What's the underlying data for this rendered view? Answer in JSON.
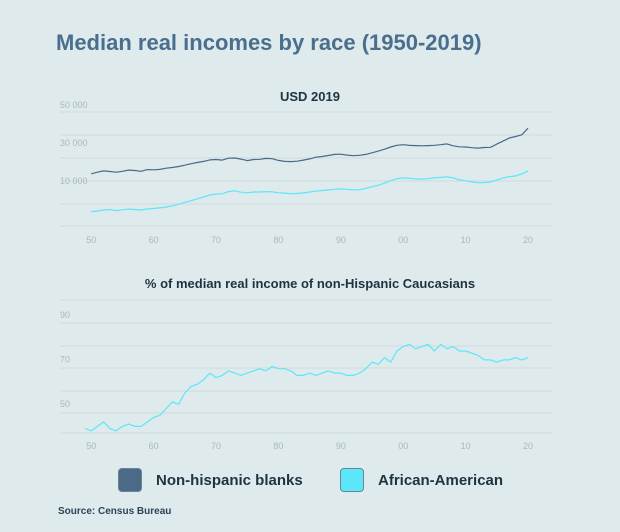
{
  "title": "Median real incomes by race (1950-2019)",
  "colors": {
    "non_hispanic": "#4b6a87",
    "african_american": "#5ae8f8",
    "grid": "#cfdadd",
    "tick": "#a9b9bd"
  },
  "legend": {
    "items": [
      {
        "label": "Non-hispanic blanks",
        "color": "#4b6a87"
      },
      {
        "label": "African-American",
        "color": "#5ae8f8"
      }
    ],
    "placement": "bottom"
  },
  "source": "Source: Census Bureau",
  "chart_data": [
    {
      "type": "line",
      "title": "USD 2019",
      "xlabel": "",
      "ylabel": "",
      "xlim": [
        1945,
        2024
      ],
      "ylim": [
        -10000,
        50000
      ],
      "y_ticks": [
        10000,
        30000,
        50000
      ],
      "y_tick_labels": [
        "10 000",
        "30 000",
        "50 000"
      ],
      "x_ticks": [
        1950,
        1960,
        1970,
        1980,
        1990,
        2000,
        2010,
        2020
      ],
      "x_tick_labels": [
        "50",
        "60",
        "70",
        "80",
        "90",
        "00",
        "10",
        "20"
      ],
      "grid": true,
      "x": [
        1950,
        1951,
        1952,
        1953,
        1954,
        1955,
        1956,
        1957,
        1958,
        1959,
        1960,
        1961,
        1962,
        1963,
        1964,
        1965,
        1966,
        1967,
        1968,
        1969,
        1970,
        1971,
        1972,
        1973,
        1974,
        1975,
        1976,
        1977,
        1978,
        1979,
        1980,
        1981,
        1982,
        1983,
        1984,
        1985,
        1986,
        1987,
        1988,
        1989,
        1990,
        1991,
        1992,
        1993,
        1994,
        1995,
        1996,
        1997,
        1998,
        1999,
        2000,
        2001,
        2002,
        2003,
        2004,
        2005,
        2006,
        2007,
        2008,
        2009,
        2010,
        2011,
        2012,
        2013,
        2014,
        2015,
        2016,
        2017,
        2018,
        2019,
        2020
      ],
      "series": [
        {
          "name": "Non-hispanic blanks",
          "color": "#4b6a87",
          "values": [
            17500,
            18300,
            19000,
            18700,
            18300,
            18800,
            19400,
            19200,
            18800,
            19700,
            19600,
            19800,
            20400,
            20800,
            21300,
            22000,
            22800,
            23400,
            24000,
            24800,
            25000,
            24700,
            25700,
            25800,
            25200,
            24400,
            25000,
            25100,
            25600,
            25400,
            24500,
            24000,
            23900,
            24100,
            24700,
            25300,
            26200,
            26600,
            27100,
            27700,
            27800,
            27300,
            27000,
            27200,
            27700,
            28500,
            29400,
            30400,
            31600,
            32500,
            32800,
            32400,
            32300,
            32200,
            32300,
            32500,
            32800,
            33200,
            32200,
            31700,
            31600,
            31200,
            31000,
            31300,
            31400,
            33100,
            34700,
            36300,
            37100,
            38000,
            41500
          ]
        },
        {
          "name": "African-American",
          "color": "#5ae8f8",
          "values": [
            -2400,
            -2100,
            -1600,
            -1300,
            -1900,
            -1500,
            -1100,
            -1300,
            -1600,
            -1000,
            -800,
            -500,
            0,
            600,
            1500,
            2400,
            3300,
            4300,
            5300,
            6300,
            6800,
            7000,
            8100,
            8500,
            7800,
            7500,
            7900,
            7900,
            8100,
            8000,
            7500,
            7300,
            7000,
            7100,
            7400,
            7900,
            8300,
            8700,
            9000,
            9300,
            9500,
            9300,
            9000,
            9100,
            9800,
            10700,
            11400,
            12600,
            13900,
            14900,
            15300,
            15100,
            14800,
            14700,
            14900,
            15300,
            15600,
            15900,
            15300,
            14300,
            13800,
            13200,
            12800,
            12800,
            13200,
            14200,
            15200,
            16000,
            16300,
            17400,
            19000
          ]
        }
      ]
    },
    {
      "type": "line",
      "title": "% of median real income of non-Hispanic Caucasians",
      "xlabel": "",
      "ylabel": "",
      "xlim": [
        1945,
        2024
      ],
      "ylim": [
        40,
        100
      ],
      "y_ticks": [
        50,
        70,
        90
      ],
      "y_tick_labels": [
        "50",
        "70",
        "90"
      ],
      "x_ticks": [
        1950,
        1960,
        1970,
        1980,
        1990,
        2000,
        2010,
        2020
      ],
      "x_tick_labels": [
        "50",
        "60",
        "70",
        "80",
        "90",
        "00",
        "10",
        "20"
      ],
      "grid": true,
      "x": [
        1949,
        1950,
        1951,
        1952,
        1953,
        1954,
        1955,
        1956,
        1957,
        1958,
        1959,
        1960,
        1961,
        1962,
        1963,
        1964,
        1965,
        1966,
        1967,
        1968,
        1969,
        1970,
        1971,
        1972,
        1973,
        1974,
        1975,
        1976,
        1977,
        1978,
        1979,
        1980,
        1981,
        1982,
        1983,
        1984,
        1985,
        1986,
        1987,
        1988,
        1989,
        1990,
        1991,
        1992,
        1993,
        1994,
        1995,
        1996,
        1997,
        1998,
        1999,
        2000,
        2001,
        2002,
        2003,
        2004,
        2005,
        2006,
        2007,
        2008,
        2009,
        2010,
        2011,
        2012,
        2013,
        2014,
        2015,
        2016,
        2017,
        2018,
        2019,
        2020
      ],
      "series": [
        {
          "name": "African-American",
          "color": "#5ae8f8",
          "values": [
            42,
            41,
            43,
            45,
            42,
            41,
            43,
            44,
            43,
            43,
            45,
            47,
            48,
            51,
            54,
            53,
            58,
            61,
            62,
            64,
            67,
            65,
            66,
            68,
            67,
            66,
            67,
            68,
            69,
            68,
            70,
            69,
            69,
            68,
            66,
            66,
            67,
            66,
            67,
            68,
            67,
            67,
            66,
            66,
            67,
            69,
            72,
            71,
            74,
            72,
            77,
            79,
            80,
            78,
            79,
            80,
            77,
            80,
            78,
            79,
            77,
            77,
            76,
            75,
            73,
            73,
            72,
            73,
            73,
            74,
            73,
            74
          ]
        }
      ]
    }
  ]
}
